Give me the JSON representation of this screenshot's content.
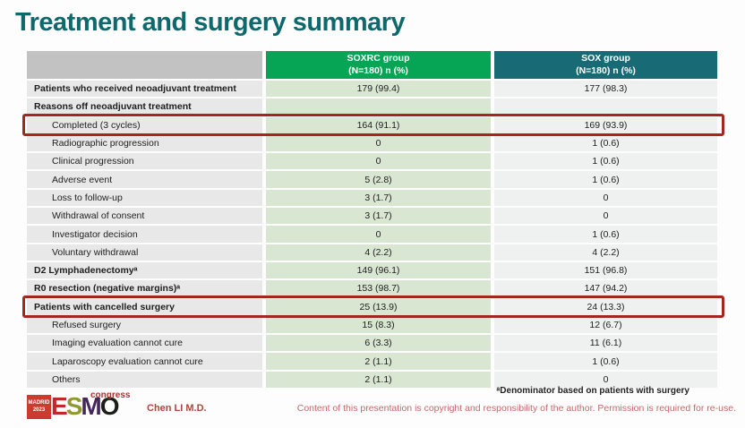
{
  "slide": {
    "title": "Treatment and surgery summary"
  },
  "table": {
    "header": {
      "group1_line1": "SOXRC group",
      "group1_line2": "(N=180)  n (%)",
      "group2_line1": "SOX group",
      "group2_line2": "(N=180)  n (%)"
    },
    "rows": [
      {
        "label": "Patients who received neoadjuvant treatment",
        "soxrc": "179 (99.4)",
        "sox": "177 (98.3)",
        "bold": true,
        "highlight": false
      },
      {
        "label": "Reasons off neoadjuvant treatment",
        "soxrc": "",
        "sox": "",
        "bold": true,
        "highlight": false
      },
      {
        "label": "Completed (3 cycles)",
        "soxrc": "164 (91.1)",
        "sox": "169 (93.9)",
        "bold": false,
        "highlight": true
      },
      {
        "label": "Radiographic progression",
        "soxrc": "0",
        "sox": "1 (0.6)",
        "bold": false,
        "highlight": false
      },
      {
        "label": "Clinical progression",
        "soxrc": "0",
        "sox": "1 (0.6)",
        "bold": false,
        "highlight": false
      },
      {
        "label": "Adverse event",
        "soxrc": "5 (2.8)",
        "sox": "1 (0.6)",
        "bold": false,
        "highlight": false
      },
      {
        "label": "Loss to follow-up",
        "soxrc": "3 (1.7)",
        "sox": "0",
        "bold": false,
        "highlight": false
      },
      {
        "label": "Withdrawal of consent",
        "soxrc": "3 (1.7)",
        "sox": "0",
        "bold": false,
        "highlight": false
      },
      {
        "label": "Investigator decision",
        "soxrc": "0",
        "sox": "1 (0.6)",
        "bold": false,
        "highlight": false
      },
      {
        "label": "Voluntary withdrawal",
        "soxrc": "4 (2.2)",
        "sox": "4 (2.2)",
        "bold": false,
        "highlight": false
      },
      {
        "label": "D2 Lymphadenectomyᵃ",
        "soxrc": "149 (96.1)",
        "sox": "151 (96.8)",
        "bold": true,
        "highlight": false
      },
      {
        "label": "R0 resection (negative margins)ᵃ",
        "soxrc": "153 (98.7)",
        "sox": "147 (94.2)",
        "bold": true,
        "highlight": false
      },
      {
        "label": "Patients with cancelled surgery",
        "soxrc": "25 (13.9)",
        "sox": "24 (13.3)",
        "bold": true,
        "highlight": true
      },
      {
        "label": "Refused surgery",
        "soxrc": "15 (8.3)",
        "sox": "12 (6.7)",
        "bold": false,
        "highlight": false
      },
      {
        "label": "Imaging evaluation cannot cure",
        "soxrc": "6 (3.3)",
        "sox": "11 (6.1)",
        "bold": false,
        "highlight": false
      },
      {
        "label": "Laparoscopy evaluation cannot cure",
        "soxrc": "2 (1.1)",
        "sox": "1 (0.6)",
        "bold": false,
        "highlight": false
      },
      {
        "label": "Others",
        "soxrc": "2 (1.1)",
        "sox": "0",
        "bold": false,
        "highlight": false
      }
    ]
  },
  "footer": {
    "logo": {
      "city": "MADRID",
      "year": "2023",
      "letters": [
        "E",
        "S",
        "M",
        "O"
      ],
      "congress": "congress"
    },
    "presenter": "Chen LI M.D.",
    "footnote": "ᵃDenominator based on patients with surgery",
    "copyright": "Content of this presentation is copyright and responsibility of the author. Permission is required for re-use."
  },
  "colors": {
    "title": "#0e696c",
    "header_green": "#06a455",
    "header_teal": "#186b74",
    "header_gray": "#c2c2c2",
    "label_cell": "#e9e8e8",
    "soxrc_cell": "#d8e6d2",
    "sox_cell": "#eef1ef",
    "highlight_border": "#a3271f",
    "accent_red": "#c1272d"
  }
}
